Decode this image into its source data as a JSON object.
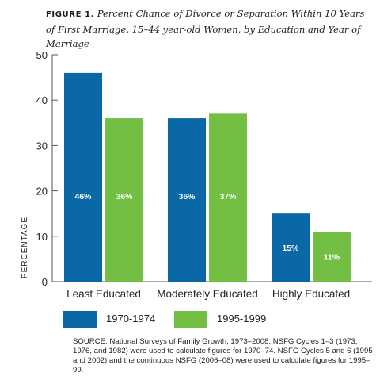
{
  "figure": {
    "label": "FIGURE 1.",
    "caption": "Percent Chance of Divorce or Separation Within 10 Years of First Marriage, 15–44 year-old Women, by Education and Year of Marriage"
  },
  "colors": {
    "series_1970_1974": "#0a68a6",
    "series_1995_1999": "#72bf44",
    "axis": "#555555"
  },
  "chart_data": {
    "type": "bar",
    "categories": [
      "Least Educated",
      "Moderately Educated",
      "Highly Educated"
    ],
    "series": [
      {
        "name": "1970-1974",
        "values": [
          46,
          36,
          15
        ],
        "labels": [
          "46%",
          "36%",
          "15%"
        ]
      },
      {
        "name": "1995-1999",
        "values": [
          36,
          37,
          11
        ],
        "labels": [
          "36%",
          "37%",
          "11%"
        ]
      }
    ],
    "ylabel": "PERCENTAGE",
    "ylim": [
      0,
      50
    ],
    "yticks": [
      0,
      10,
      20,
      30,
      40,
      50
    ],
    "grid": false,
    "legend_position": "bottom"
  },
  "legend": {
    "items": [
      {
        "label": "1970-1974"
      },
      {
        "label": "1995-1999"
      }
    ]
  },
  "source": "SOURCE: National Surveys of Family Growth, 1973–2008. NSFG Cycles 1–3 (1973, 1976, and 1982) were used to calculate figures for 1970–74. NSFG Cycles 5 and 6 (1995 and 2002) and the continuous NSFG (2006–08) were used to calculate figures for 1995–99."
}
